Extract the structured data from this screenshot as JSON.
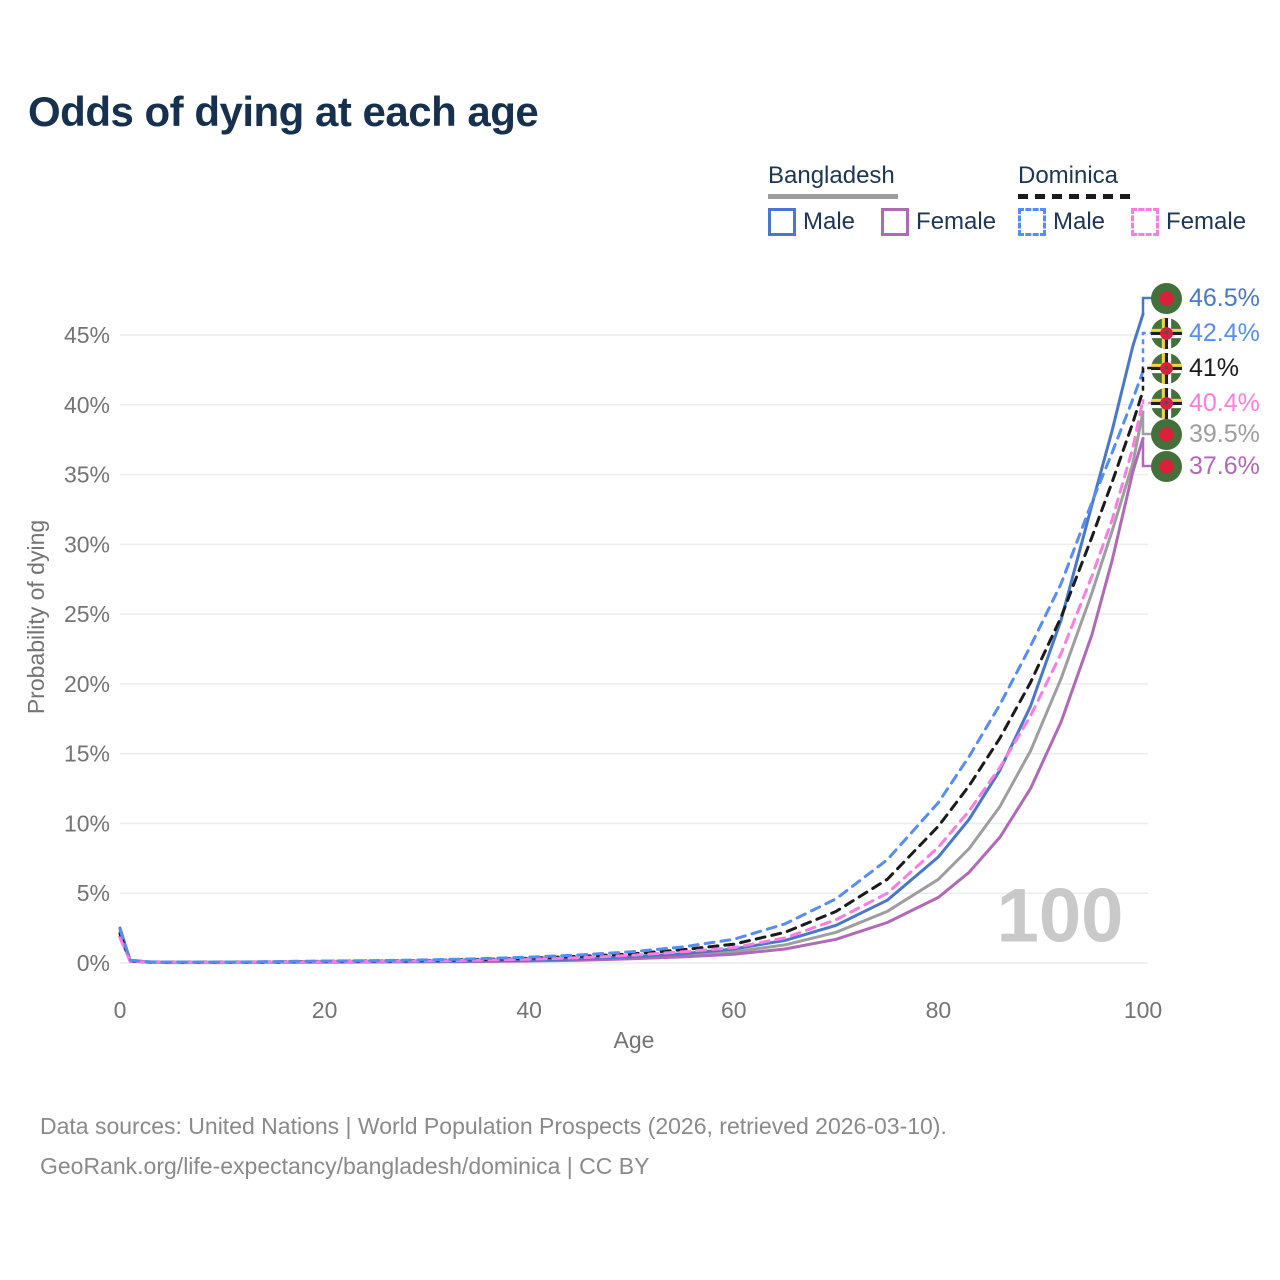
{
  "title": "Odds of dying at each age",
  "watermark_age": "100",
  "legend": {
    "groups": [
      {
        "label": "Bangladesh",
        "line_style": "solid",
        "line_color": "#9e9e9e",
        "items": [
          {
            "label": "Male",
            "color": "#4878c8"
          },
          {
            "label": "Female",
            "color": "#b069b6"
          }
        ]
      },
      {
        "label": "Dominica",
        "line_style": "dashed",
        "line_color": "#1b1b1b",
        "items": [
          {
            "label": "Male",
            "color": "#568df2"
          },
          {
            "label": "Female",
            "color": "#fb7ce3"
          }
        ]
      }
    ]
  },
  "chart_data": {
    "type": "line",
    "title": "Odds of dying at each age",
    "xlabel": "Age",
    "ylabel": "Probability of dying",
    "xlim": [
      0,
      100
    ],
    "ylim_pct": [
      0,
      47.5
    ],
    "x_ticks": [
      0,
      20,
      40,
      60,
      80,
      100
    ],
    "y_ticks_pct": [
      0,
      5,
      10,
      15,
      20,
      25,
      30,
      35,
      40,
      45
    ],
    "grid": "horizontal",
    "legend_position": "top-right",
    "age_cursor": "100",
    "series": [
      {
        "id": "bangladesh-male",
        "name": "Bangladesh Male",
        "country": "bangladesh",
        "sex": "male",
        "color": "#4878c8",
        "dash": false,
        "end_label": "46.5%",
        "end_value_pct": 46.5,
        "points": [
          [
            0,
            2.5
          ],
          [
            1,
            0.16
          ],
          [
            3,
            0.06
          ],
          [
            5,
            0.05
          ],
          [
            10,
            0.05
          ],
          [
            15,
            0.07
          ],
          [
            20,
            0.1
          ],
          [
            25,
            0.11
          ],
          [
            30,
            0.13
          ],
          [
            35,
            0.16
          ],
          [
            40,
            0.21
          ],
          [
            45,
            0.3
          ],
          [
            50,
            0.45
          ],
          [
            55,
            0.67
          ],
          [
            60,
            1.0
          ],
          [
            65,
            1.62
          ],
          [
            70,
            2.7
          ],
          [
            75,
            4.5
          ],
          [
            80,
            7.6
          ],
          [
            83,
            10.3
          ],
          [
            86,
            13.8
          ],
          [
            89,
            18.4
          ],
          [
            92,
            24.6
          ],
          [
            95,
            32.8
          ],
          [
            97,
            38.2
          ],
          [
            99,
            44.2
          ],
          [
            100,
            46.5
          ]
        ]
      },
      {
        "id": "dominica-male",
        "name": "Dominica Male",
        "country": "dominica",
        "sex": "male",
        "color": "#568df2",
        "dash": true,
        "end_label": "42.4%",
        "end_value_pct": 42.4,
        "points": [
          [
            0,
            2.4
          ],
          [
            1,
            0.2
          ],
          [
            3,
            0.08
          ],
          [
            5,
            0.07
          ],
          [
            10,
            0.06
          ],
          [
            15,
            0.1
          ],
          [
            20,
            0.14
          ],
          [
            25,
            0.17
          ],
          [
            30,
            0.22
          ],
          [
            35,
            0.3
          ],
          [
            40,
            0.42
          ],
          [
            45,
            0.58
          ],
          [
            50,
            0.8
          ],
          [
            55,
            1.15
          ],
          [
            60,
            1.7
          ],
          [
            65,
            2.8
          ],
          [
            70,
            4.6
          ],
          [
            75,
            7.4
          ],
          [
            80,
            11.5
          ],
          [
            83,
            14.8
          ],
          [
            86,
            18.5
          ],
          [
            89,
            22.7
          ],
          [
            92,
            27.2
          ],
          [
            95,
            33.0
          ],
          [
            97,
            36.6
          ],
          [
            99,
            40.4
          ],
          [
            100,
            42.4
          ]
        ]
      },
      {
        "id": "dominica-mean",
        "name": "Dominica",
        "country": "dominica",
        "sex": "both",
        "color": "#1b1b1b",
        "dash": true,
        "end_label": "41%",
        "end_value_pct": 41.0,
        "points": [
          [
            0,
            2.1
          ],
          [
            1,
            0.17
          ],
          [
            3,
            0.07
          ],
          [
            5,
            0.06
          ],
          [
            10,
            0.05
          ],
          [
            15,
            0.08
          ],
          [
            20,
            0.12
          ],
          [
            25,
            0.14
          ],
          [
            30,
            0.18
          ],
          [
            35,
            0.25
          ],
          [
            40,
            0.34
          ],
          [
            45,
            0.48
          ],
          [
            50,
            0.65
          ],
          [
            55,
            0.95
          ],
          [
            60,
            1.35
          ],
          [
            65,
            2.2
          ],
          [
            70,
            3.7
          ],
          [
            75,
            6.0
          ],
          [
            80,
            9.8
          ],
          [
            83,
            12.7
          ],
          [
            86,
            16.1
          ],
          [
            89,
            20.1
          ],
          [
            92,
            24.8
          ],
          [
            95,
            30.5
          ],
          [
            97,
            34.5
          ],
          [
            99,
            38.7
          ],
          [
            100,
            41.0
          ]
        ]
      },
      {
        "id": "dominica-female",
        "name": "Dominica Female",
        "country": "dominica",
        "sex": "female",
        "color": "#fb7ce3",
        "dash": true,
        "end_label": "40.4%",
        "end_value_pct": 40.4,
        "points": [
          [
            0,
            1.8
          ],
          [
            1,
            0.15
          ],
          [
            3,
            0.06
          ],
          [
            5,
            0.05
          ],
          [
            10,
            0.04
          ],
          [
            15,
            0.07
          ],
          [
            20,
            0.1
          ],
          [
            25,
            0.12
          ],
          [
            30,
            0.15
          ],
          [
            35,
            0.2
          ],
          [
            40,
            0.27
          ],
          [
            45,
            0.38
          ],
          [
            50,
            0.55
          ],
          [
            55,
            0.8
          ],
          [
            60,
            1.1
          ],
          [
            65,
            1.8
          ],
          [
            70,
            3.1
          ],
          [
            75,
            5.0
          ],
          [
            80,
            8.3
          ],
          [
            83,
            10.9
          ],
          [
            86,
            14.0
          ],
          [
            89,
            17.7
          ],
          [
            92,
            22.2
          ],
          [
            95,
            27.7
          ],
          [
            97,
            31.8
          ],
          [
            99,
            36.9
          ],
          [
            100,
            40.4
          ]
        ]
      },
      {
        "id": "bangladesh-mean",
        "name": "Bangladesh",
        "country": "bangladesh",
        "sex": "both",
        "color": "#9e9e9e",
        "dash": false,
        "end_label": "39.5%",
        "end_value_pct": 39.5,
        "points": [
          [
            0,
            2.2
          ],
          [
            1,
            0.14
          ],
          [
            3,
            0.05
          ],
          [
            5,
            0.04
          ],
          [
            10,
            0.04
          ],
          [
            15,
            0.06
          ],
          [
            20,
            0.08
          ],
          [
            25,
            0.09
          ],
          [
            30,
            0.11
          ],
          [
            35,
            0.13
          ],
          [
            40,
            0.17
          ],
          [
            45,
            0.25
          ],
          [
            50,
            0.38
          ],
          [
            55,
            0.55
          ],
          [
            60,
            0.8
          ],
          [
            65,
            1.3
          ],
          [
            70,
            2.2
          ],
          [
            75,
            3.7
          ],
          [
            80,
            6.0
          ],
          [
            83,
            8.2
          ],
          [
            86,
            11.2
          ],
          [
            89,
            15.2
          ],
          [
            92,
            20.4
          ],
          [
            95,
            26.5
          ],
          [
            97,
            31.0
          ],
          [
            99,
            35.8
          ],
          [
            100,
            39.5
          ]
        ]
      },
      {
        "id": "bangladesh-female",
        "name": "Bangladesh Female",
        "country": "bangladesh",
        "sex": "female",
        "color": "#b069b6",
        "dash": false,
        "end_label": "37.6%",
        "end_value_pct": 37.6,
        "points": [
          [
            0,
            1.9
          ],
          [
            1,
            0.12
          ],
          [
            3,
            0.04
          ],
          [
            5,
            0.03
          ],
          [
            10,
            0.03
          ],
          [
            15,
            0.04
          ],
          [
            20,
            0.06
          ],
          [
            25,
            0.07
          ],
          [
            30,
            0.09
          ],
          [
            35,
            0.11
          ],
          [
            40,
            0.14
          ],
          [
            45,
            0.2
          ],
          [
            50,
            0.3
          ],
          [
            55,
            0.44
          ],
          [
            60,
            0.62
          ],
          [
            65,
            1.0
          ],
          [
            70,
            1.7
          ],
          [
            75,
            2.9
          ],
          [
            80,
            4.7
          ],
          [
            83,
            6.5
          ],
          [
            86,
            9.0
          ],
          [
            89,
            12.5
          ],
          [
            92,
            17.3
          ],
          [
            95,
            23.5
          ],
          [
            97,
            28.9
          ],
          [
            99,
            35.2
          ],
          [
            100,
            37.6
          ]
        ]
      }
    ]
  },
  "footer": {
    "line1": "Data sources: United Nations | World Population Prospects (2026, retrieved 2026-03-10).",
    "line2": "GeoRank.org/life-expectancy/bangladesh/dominica | CC BY"
  }
}
